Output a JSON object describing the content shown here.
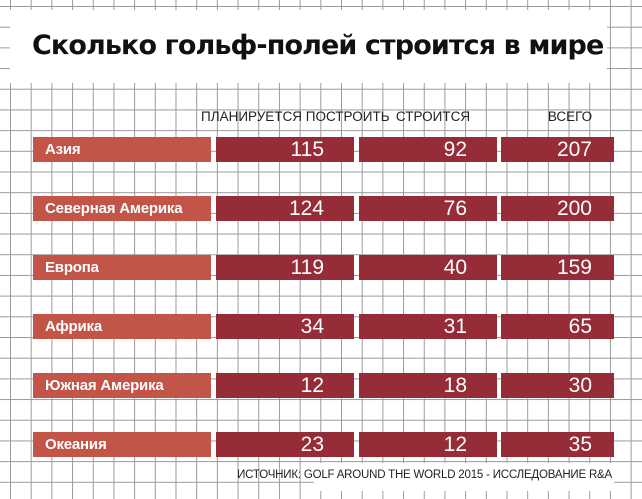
{
  "chart_data": {
    "type": "table",
    "title": "Сколько гольф-полей строится в мире",
    "columns": [
      "ПЛАНИРУЕТСЯ ПОСТРОИТЬ",
      "СТРОИТСЯ",
      "ВСЕГО"
    ],
    "rows": [
      {
        "region": "Азия",
        "values": [
          115,
          92,
          207
        ]
      },
      {
        "region": "Северная Америка",
        "values": [
          124,
          76,
          200
        ]
      },
      {
        "region": "Европа",
        "values": [
          119,
          40,
          159
        ]
      },
      {
        "region": "Африка",
        "values": [
          34,
          31,
          65
        ]
      },
      {
        "region": "Южная Америка",
        "values": [
          12,
          18,
          30
        ]
      },
      {
        "region": "Океания",
        "values": [
          23,
          12,
          35
        ]
      }
    ],
    "source": "ИСТОЧНИК: GOLF AROUND THE WORLD 2015 - ИССЛЕДОВАНИЕ R&A"
  },
  "colors": {
    "region_bg": "#c25548",
    "cell_bg": "#952c37",
    "grid": "#9a9a9a"
  }
}
